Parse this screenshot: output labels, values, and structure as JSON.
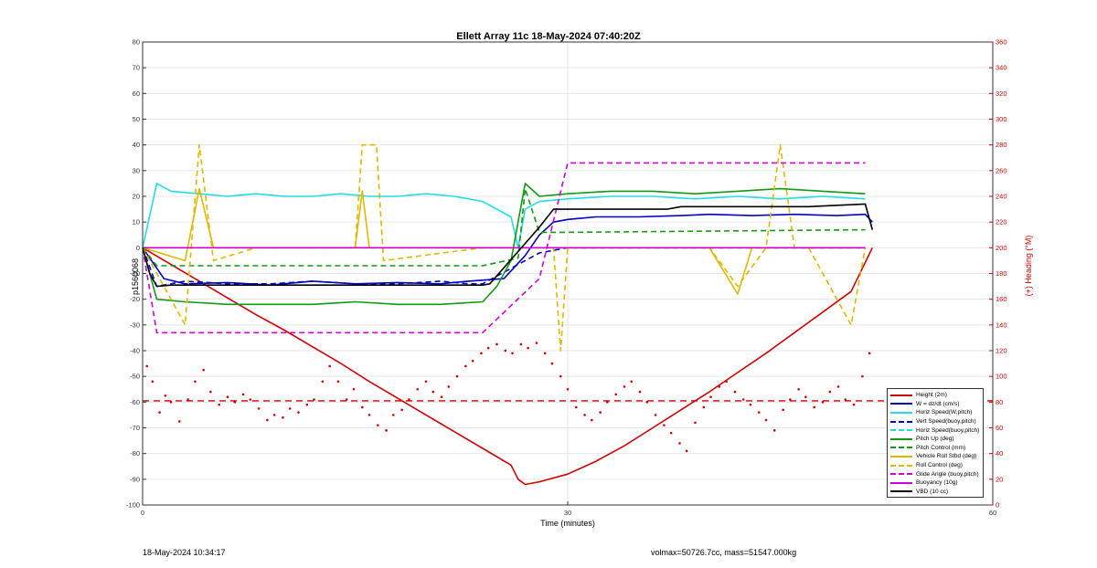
{
  "chart_data": {
    "type": "line",
    "title": "Ellett Array 11c 18-May-2024 07:40:20Z",
    "xlabel": "Time (minutes)",
    "ylabel": "p1560068",
    "y2label": "(+) Heading (°M)",
    "xlim": [
      0,
      60
    ],
    "ylim": [
      -100,
      80
    ],
    "y2lim": [
      0,
      360
    ],
    "xticks": [
      0,
      30,
      60
    ],
    "yticks": [
      -100,
      -90,
      -80,
      -70,
      -60,
      -50,
      -40,
      -30,
      -20,
      -10,
      0,
      10,
      20,
      30,
      40,
      50,
      60,
      70,
      80
    ],
    "y2ticks": [
      0,
      20,
      40,
      60,
      80,
      100,
      120,
      140,
      160,
      180,
      200,
      220,
      240,
      260,
      280,
      300,
      320,
      340,
      360
    ],
    "grid": true,
    "legend_position": "bottom-right",
    "series": [
      {
        "name": "Height (2m)",
        "color": "#d00000",
        "style": "solid",
        "x": [
          0,
          2,
          4,
          6,
          8,
          10,
          12,
          14,
          16,
          18,
          20,
          22,
          24,
          26,
          26.5,
          27,
          28,
          30,
          32,
          34,
          36,
          38,
          40,
          42,
          44,
          46,
          48,
          50,
          51.5
        ],
        "y": [
          0,
          -6.5,
          -13,
          -19.5,
          -26,
          -32,
          -38.5,
          -45,
          -52,
          -58.5,
          -65,
          -71.5,
          -78,
          -84.5,
          -90,
          -92,
          -91,
          -88,
          -83,
          -77,
          -70,
          -63,
          -56,
          -48.5,
          -41,
          -33,
          -25,
          -17,
          0
        ]
      },
      {
        "name": "W = dz/dt (cm/s)",
        "color": "#0000c8",
        "style": "solid",
        "x": [
          0,
          1.5,
          3,
          6,
          9,
          12,
          15,
          18,
          21,
          23,
          25.5,
          27,
          28,
          29,
          30,
          32,
          35,
          38,
          40,
          43,
          46,
          49,
          51,
          51.5
        ],
        "y": [
          0,
          -12,
          -14,
          -13.5,
          -14.5,
          -13,
          -14,
          -13.5,
          -14,
          -13,
          -12,
          -3,
          5,
          10,
          11,
          12,
          12,
          12.5,
          13,
          12.5,
          13,
          12.5,
          13,
          10
        ]
      },
      {
        "name": "Horiz Speed(W,pitch)",
        "color": "#22dde8",
        "style": "solid",
        "x": [
          0,
          1,
          2,
          4,
          6,
          8,
          10,
          12,
          14,
          16,
          18,
          20,
          22,
          24,
          26,
          26.5,
          27,
          28,
          30,
          33,
          36,
          39,
          42,
          45,
          48,
          51
        ],
        "y": [
          0,
          25,
          22,
          21,
          20,
          21,
          20,
          20,
          21,
          20,
          20,
          21,
          20,
          18,
          12,
          0,
          15,
          18,
          19,
          20,
          20,
          19,
          20,
          19,
          20,
          19
        ]
      },
      {
        "name": "Vert Speed(buoy,pitch)",
        "color": "#0000c8",
        "style": "dashed",
        "x": [
          0,
          1,
          3,
          6,
          9,
          12,
          15,
          18,
          21,
          23,
          24,
          28,
          30,
          35,
          40,
          45,
          51
        ],
        "y": [
          0,
          -15,
          -13,
          -14,
          -14,
          -13,
          -14,
          -14,
          -13,
          -14,
          -14,
          -2,
          0,
          0,
          0,
          0,
          0
        ]
      },
      {
        "name": "Horiz Speed(buoy,pitch)",
        "color": "#22dde8",
        "style": "dashed",
        "x": [
          0,
          2,
          6,
          10,
          14,
          18,
          22,
          24,
          28,
          30,
          40,
          51
        ],
        "y": [
          0,
          0,
          0,
          0,
          0,
          0,
          0,
          0,
          0,
          0,
          0,
          0
        ]
      },
      {
        "name": "Pitch Up (deg)",
        "color": "#129a12",
        "style": "solid",
        "x": [
          0,
          1,
          3,
          6,
          9,
          12,
          15,
          18,
          21,
          24,
          25,
          26,
          27,
          28,
          30,
          33,
          36,
          39,
          42,
          45,
          48,
          51
        ],
        "y": [
          0,
          -20,
          -21,
          -22,
          -22,
          -22,
          -21,
          -22,
          -22,
          -21,
          -15,
          -5,
          25,
          20,
          21,
          22,
          22,
          21,
          22,
          23,
          22,
          21
        ]
      },
      {
        "name": "Pitch Control (mm)",
        "color": "#129a12",
        "style": "dashed",
        "x": [
          0,
          1,
          24,
          26.5,
          27,
          28,
          30,
          51
        ],
        "y": [
          0,
          -7,
          -7,
          -4,
          23,
          6,
          6,
          7
        ]
      },
      {
        "name": "Vehicle Roll Stbd (deg)",
        "color": "#e0b800",
        "style": "solid",
        "x": [
          0,
          3,
          4,
          5,
          8,
          10,
          15,
          15.5,
          16,
          18,
          20,
          24,
          27,
          29,
          30,
          33,
          40,
          42,
          43,
          45,
          48,
          51
        ],
        "y": [
          0,
          -5,
          23,
          0,
          0,
          0,
          0,
          22,
          0,
          0,
          0,
          0,
          0,
          0,
          0,
          0,
          0,
          -18,
          0,
          0,
          0,
          0
        ]
      },
      {
        "name": "Roll Control (deg)",
        "color": "#e0b800",
        "style": "dashed",
        "x": [
          0,
          3,
          4,
          5,
          8,
          15,
          15.5,
          16.5,
          17,
          24,
          29,
          29.5,
          30,
          35,
          40,
          42,
          44,
          45,
          46,
          47,
          50,
          51
        ],
        "y": [
          0,
          -30,
          40,
          -5,
          0,
          0,
          40,
          40,
          -5,
          0,
          0,
          -40,
          0,
          0,
          0,
          -15,
          0,
          40,
          0,
          0,
          -30,
          0
        ]
      },
      {
        "name": "Glide Angle (buoy,pitch)",
        "color": "#d400d4",
        "style": "dashed",
        "x": [
          0,
          1,
          3,
          6,
          9,
          12,
          15,
          18,
          21,
          24,
          28,
          30,
          33,
          36,
          39,
          42,
          45,
          48,
          51
        ],
        "y": [
          0,
          -33,
          -33,
          -33,
          -33,
          -33,
          -33,
          -33,
          -33,
          -33,
          -12,
          33,
          33,
          33,
          33,
          33,
          33,
          33,
          33
        ]
      },
      {
        "name": "Buoyancy (10g)",
        "color": "#d400d4",
        "style": "solid",
        "x": [
          0,
          2,
          24,
          28,
          30,
          51
        ],
        "y": [
          0,
          0,
          0,
          0,
          0,
          0
        ]
      },
      {
        "name": "VBD (10 cc)",
        "color": "#000000",
        "style": "solid",
        "x": [
          0,
          0.5,
          1,
          2,
          24,
          24.5,
          28,
          29,
          37,
          38,
          47,
          51,
          51.5
        ],
        "y": [
          0,
          -10,
          -15,
          -14.5,
          -14.5,
          -14,
          8,
          15,
          15,
          16,
          16,
          17,
          7
        ]
      }
    ],
    "heading_points": {
      "color": "#d00000",
      "x": [
        0.3,
        0.7,
        1.2,
        1.6,
        2.0,
        2.6,
        3.2,
        3.7,
        4.3,
        4.8,
        5.4,
        6.0,
        6.5,
        7.1,
        7.6,
        8.2,
        8.8,
        9.3,
        9.9,
        10.4,
        11.0,
        11.6,
        12.1,
        12.7,
        13.2,
        13.8,
        14.4,
        14.9,
        15.5,
        16.0,
        16.6,
        17.2,
        17.7,
        18.3,
        18.8,
        19.4,
        20.0,
        20.5,
        21.1,
        21.6,
        22.2,
        22.8,
        23.3,
        23.9,
        24.4,
        25.0,
        25.6,
        26.1,
        26.7,
        27.2,
        27.8,
        28.4,
        28.9,
        29.5,
        30.0,
        30.6,
        31.2,
        31.7,
        32.3,
        32.8,
        33.4,
        34.0,
        34.5,
        35.1,
        35.6,
        36.2,
        36.8,
        37.3,
        37.9,
        38.4,
        39.0,
        39.6,
        40.1,
        40.7,
        41.2,
        41.8,
        42.4,
        42.9,
        43.5,
        44.0,
        44.6,
        45.2,
        45.7,
        46.3,
        46.8,
        47.4,
        48.0,
        48.5,
        49.1,
        49.6,
        50.2,
        50.8,
        51.3
      ],
      "y": [
        108,
        96,
        72,
        85,
        80,
        65,
        82,
        96,
        105,
        88,
        78,
        84,
        80,
        86,
        82,
        75,
        66,
        70,
        68,
        75,
        72,
        78,
        82,
        96,
        108,
        96,
        82,
        90,
        76,
        70,
        62,
        58,
        70,
        74,
        82,
        90,
        96,
        88,
        84,
        92,
        100,
        108,
        112,
        118,
        122,
        125,
        120,
        118,
        125,
        122,
        126,
        118,
        110,
        100,
        90,
        76,
        70,
        66,
        72,
        80,
        86,
        92,
        96,
        88,
        80,
        70,
        62,
        56,
        48,
        42,
        64,
        76,
        84,
        92,
        96,
        88,
        82,
        78,
        72,
        66,
        58,
        74,
        82,
        90,
        84,
        76,
        80,
        88,
        92,
        82,
        78,
        100,
        118
      ]
    },
    "heading_mean": 81
  },
  "footer": {
    "left": "18-May-2024 10:34:17",
    "right": "volmax=50726.7cc, mass=51547.000kg"
  }
}
